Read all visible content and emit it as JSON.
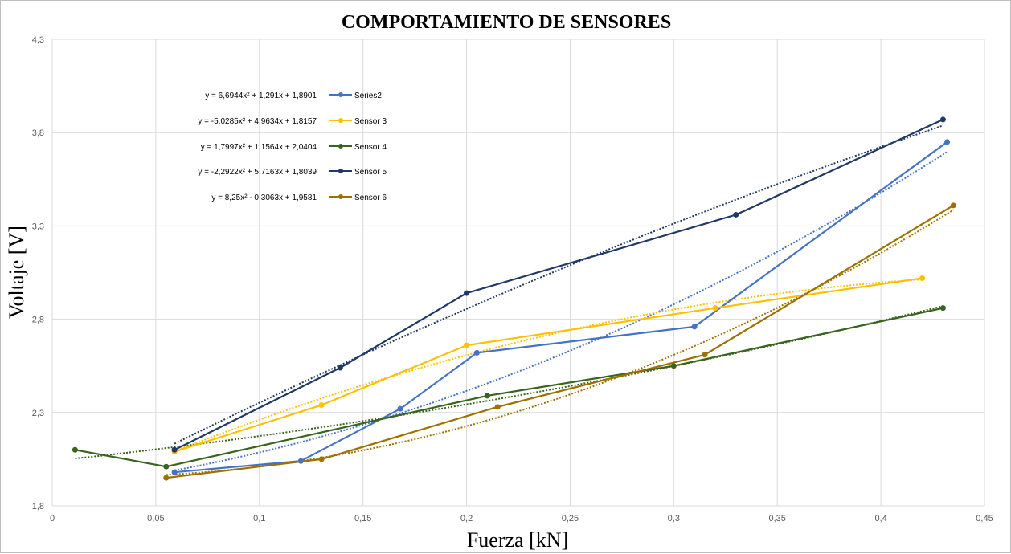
{
  "chart_data": {
    "type": "scatter",
    "title": "COMPORTAMIENTO DE SENSORES",
    "xlabel": "Fuerza [kN]",
    "ylabel": "Voltaje [V]",
    "xlim": [
      0,
      0.45
    ],
    "ylim": [
      1.8,
      4.3
    ],
    "x_ticks": [
      "0",
      "0,05",
      "0,1",
      "0,15",
      "0,2",
      "0,25",
      "0,3",
      "0,35",
      "0,4",
      "0,45"
    ],
    "x_tick_values": [
      0,
      0.05,
      0.1,
      0.15,
      0.2,
      0.25,
      0.3,
      0.35,
      0.4,
      0.45
    ],
    "y_ticks": [
      "1,8",
      "2,3",
      "2,8",
      "3,3",
      "3,8",
      "4,3"
    ],
    "y_tick_values": [
      1.8,
      2.3,
      2.8,
      3.3,
      3.8,
      4.3
    ],
    "grid": true,
    "legend_position": "top-left",
    "series": [
      {
        "name": "Series2",
        "color": "#4472C4",
        "equation": "y = 6,6944x² + 1,291x + 1,8901",
        "trend": [
          6.6944,
          1.291,
          1.8901
        ],
        "points": [
          [
            0.059,
            1.98
          ],
          [
            0.12,
            2.04
          ],
          [
            0.168,
            2.32
          ],
          [
            0.205,
            2.62
          ],
          [
            0.31,
            2.76
          ],
          [
            0.432,
            3.75
          ]
        ]
      },
      {
        "name": "Sensor 3",
        "color": "#FFC000",
        "equation": "y = -5,0285x² + 4,9634x + 1,8157",
        "trend": [
          -5.0285,
          4.9634,
          1.8157
        ],
        "points": [
          [
            0.059,
            2.09
          ],
          [
            0.13,
            2.34
          ],
          [
            0.2,
            2.66
          ],
          [
            0.32,
            2.86
          ],
          [
            0.42,
            3.02
          ]
        ]
      },
      {
        "name": "Sensor 4",
        "color": "#38641E",
        "equation": "y = 1,7997x² + 1,1564x + 2,0404",
        "trend": [
          1.7997,
          1.1564,
          2.0404
        ],
        "points": [
          [
            0.011,
            2.1
          ],
          [
            0.055,
            2.01
          ],
          [
            0.21,
            2.39
          ],
          [
            0.3,
            2.55
          ],
          [
            0.43,
            2.86
          ]
        ]
      },
      {
        "name": "Sensor 5",
        "color": "#203864",
        "equation": "y = -2,2922x² + 5,7163x + 1,8039",
        "trend": [
          -2.2922,
          5.7163,
          1.8039
        ],
        "points": [
          [
            0.059,
            2.1
          ],
          [
            0.139,
            2.54
          ],
          [
            0.2,
            2.94
          ],
          [
            0.33,
            3.36
          ],
          [
            0.43,
            3.87
          ]
        ]
      },
      {
        "name": "Sensor 6",
        "color": "#9C7100",
        "equation": "y = 8,25x² - 0,3063x + 1,9581",
        "trend": [
          8.25,
          -0.3063,
          1.9581
        ],
        "points": [
          [
            0.055,
            1.95
          ],
          [
            0.13,
            2.05
          ],
          [
            0.215,
            2.33
          ],
          [
            0.315,
            2.61
          ],
          [
            0.435,
            3.41
          ]
        ]
      }
    ]
  }
}
